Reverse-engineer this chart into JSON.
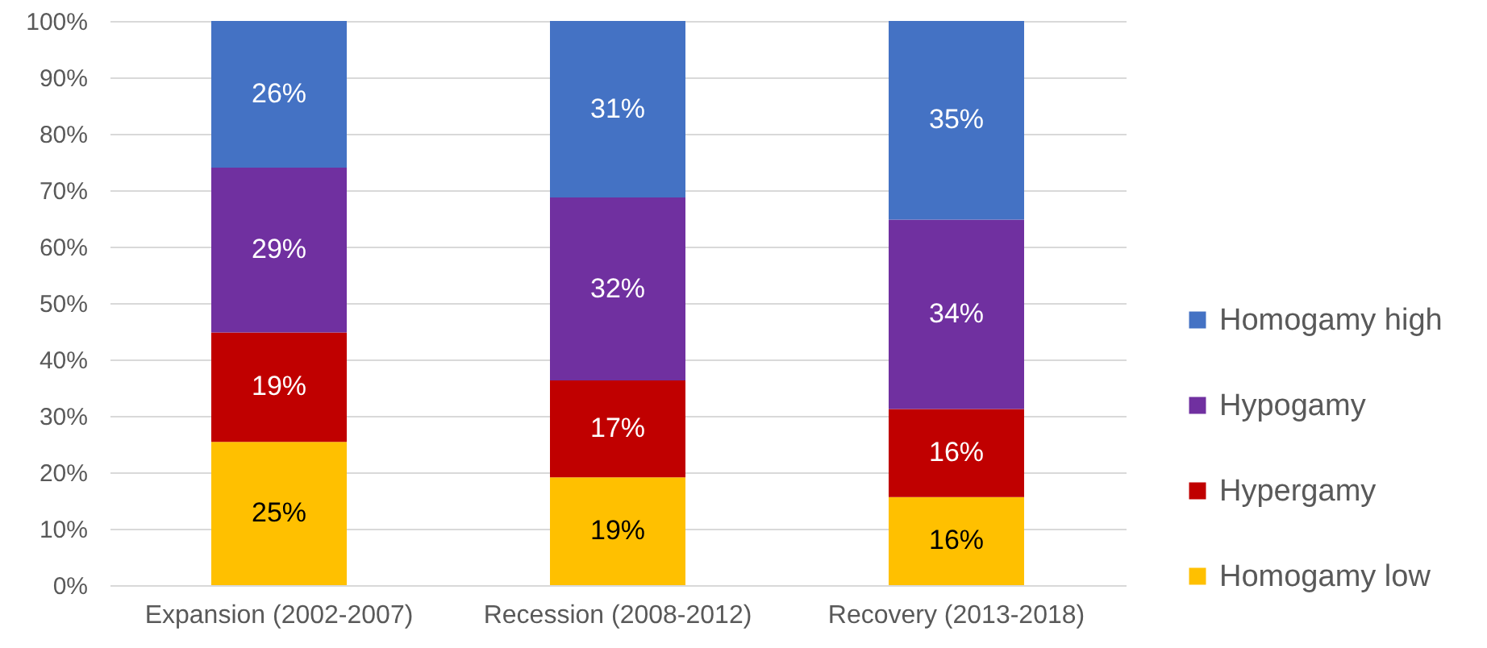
{
  "chart_data": {
    "type": "bar",
    "stacked": true,
    "categories": [
      "Expansion (2002-2007)",
      "Recession (2008-2012)",
      "Recovery (2013-2018)"
    ],
    "series": [
      {
        "name": "Homogamy low",
        "color": "#ffc000",
        "values": [
          25.4,
          19.1,
          15.6
        ],
        "value_labels": [
          "25%",
          "19%",
          "16%"
        ]
      },
      {
        "name": "Hypergamy",
        "color": "#c00000",
        "values": [
          19.4,
          17.2,
          15.6
        ],
        "value_labels": [
          "19%",
          "17%",
          "16%"
        ]
      },
      {
        "name": "Hypogamy",
        "color": "#7030a0",
        "values": [
          29.2,
          32.4,
          33.6
        ],
        "value_labels": [
          "29%",
          "32%",
          "34%"
        ]
      },
      {
        "name": "Homogamy high",
        "color": "#4472c4",
        "values": [
          26.0,
          31.3,
          35.2
        ],
        "value_labels": [
          "26%",
          "31%",
          "35%"
        ]
      }
    ],
    "ylim": [
      0,
      100
    ],
    "yticks": [
      {
        "value": 0,
        "label": "0%"
      },
      {
        "value": 10,
        "label": "10%"
      },
      {
        "value": 20,
        "label": "20%"
      },
      {
        "value": 30,
        "label": "30%"
      },
      {
        "value": 40,
        "label": "40%"
      },
      {
        "value": 50,
        "label": "50%"
      },
      {
        "value": 60,
        "label": "60%"
      },
      {
        "value": 70,
        "label": "70%"
      },
      {
        "value": 80,
        "label": "80%"
      },
      {
        "value": 90,
        "label": "90%"
      },
      {
        "value": 100,
        "label": "100%"
      }
    ],
    "grid": "y",
    "legend": "right"
  }
}
